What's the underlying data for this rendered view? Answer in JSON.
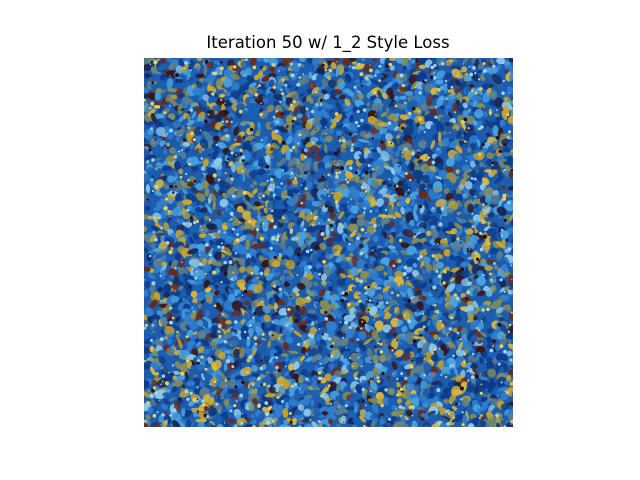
{
  "figure": {
    "title": "Iteration 50 w/ 1_2 Style Loss"
  },
  "image": {
    "description_icon": "stylized-noise-texture-image",
    "palette": [
      "#0d3b8a",
      "#1a5fb4",
      "#2f7fd0",
      "#4aa3e0",
      "#8cc7e8",
      "#5f7f8a",
      "#8a8f55",
      "#c9a62a",
      "#e0b93a",
      "#6b2a1a",
      "#3a1410",
      "#1b2550"
    ]
  }
}
